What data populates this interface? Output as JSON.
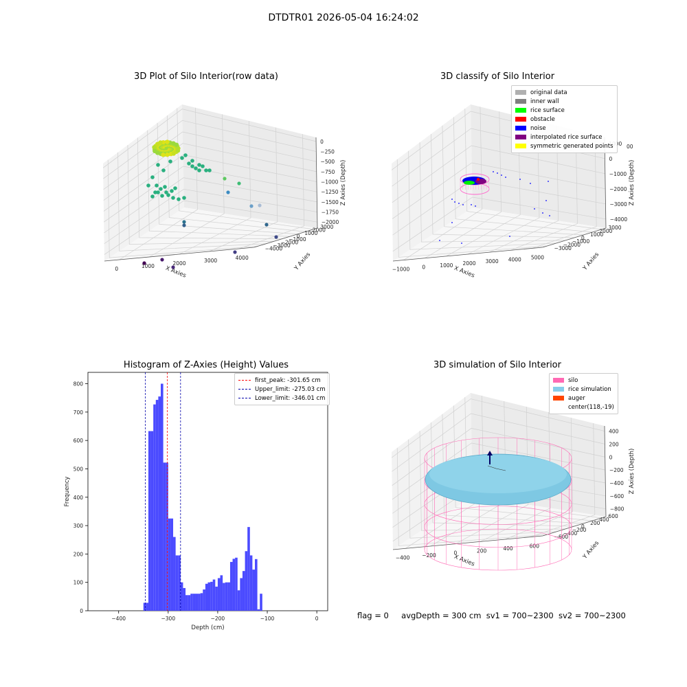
{
  "suptitle": "DTDTR01 2026-05-04 16:24:02",
  "panels": {
    "raw": {
      "title": "3D Plot of Silo Interior(row data)",
      "xlabel": "X Axies",
      "ylabel": "Y Axies",
      "zlabel": "Z Axies (Depth)",
      "xticks": [
        "0",
        "1000",
        "2000",
        "3000",
        "4000"
      ],
      "yticks": [
        "3000",
        "2000",
        "1000",
        "0",
        "−1000",
        "−2000",
        "−3000",
        "−4000"
      ],
      "zticks": [
        "0",
        "−250",
        "−500",
        "−750",
        "−1000",
        "−1250",
        "−1500",
        "−1750",
        "−2000"
      ]
    },
    "classify": {
      "title": "3D classify of Silo Interior",
      "xlabel": "X Axies",
      "ylabel": "Y Axies",
      "zlabel": "Z Axies (Depth)",
      "xticks": [
        "−1000",
        "0",
        "1000",
        "2000",
        "3000",
        "4000",
        "5000"
      ],
      "yticks": [
        "3000",
        "2000",
        "1000",
        "0",
        "−1000",
        "−2000",
        "−3000"
      ],
      "zticks": [
        "1000",
        "0",
        "−1000",
        "−2000",
        "−3000",
        "−4000"
      ],
      "ztop_partial": "00",
      "legend": [
        {
          "label": "original data",
          "color": "#b0b0b0"
        },
        {
          "label": "inner wall",
          "color": "#808080"
        },
        {
          "label": "rice surface",
          "color": "#00ff00"
        },
        {
          "label": "obstacle",
          "color": "#ff0000"
        },
        {
          "label": "noise",
          "color": "#0000ff"
        },
        {
          "label": "interpolated rice surface",
          "color": "#800080"
        },
        {
          "label": "symmetric generated points",
          "color": "#ffff00"
        }
      ]
    },
    "histogram": {
      "title": "Histogram of Z-Axies (Height) Values",
      "xlabel": "Depth (cm)",
      "ylabel": "Frequency",
      "legend": [
        {
          "label": "first_peak: -301.65 cm",
          "color": "#ff0000"
        },
        {
          "label": "Upper_limit: -275.03 cm",
          "color": "#0000aa"
        },
        {
          "label": "Lower_limit: -346.01 cm",
          "color": "#0000aa"
        }
      ]
    },
    "simulation": {
      "title": "3D simulation of Silo Interior",
      "xlabel": "X Axies",
      "ylabel": "Y Axies",
      "zlabel": "Z Axies (Depth)",
      "xticks": [
        "−400",
        "−200",
        "0",
        "200",
        "400",
        "600"
      ],
      "yticks": [
        "600",
        "400",
        "200",
        "0",
        "−200",
        "−400",
        "−600"
      ],
      "zticks": [
        "400",
        "200",
        "0",
        "−200",
        "−400",
        "−600",
        "−800"
      ],
      "legend": [
        {
          "label": "silo",
          "color": "#ff69b4"
        },
        {
          "label": "rice simulation",
          "color": "#87ceeb"
        },
        {
          "label": "auger",
          "color": "#ff4500"
        },
        {
          "label": "center(118,-19)",
          "color": ""
        }
      ]
    }
  },
  "status": {
    "flag": "flag = 0",
    "avg": "avgDepth = 300 cm",
    "sv1": "sv1 = 700~2300",
    "sv2": "sv2 = 700~2300"
  },
  "chart_data": [
    {
      "type": "scatter",
      "title": "3D Plot of Silo Interior(row data)",
      "xlabel": "X Axies",
      "ylabel": "Y Axies",
      "zlabel": "Z Axies (Depth)",
      "xlim": [
        -500,
        4300
      ],
      "ylim": [
        -4200,
        3500
      ],
      "zlim": [
        -2100,
        100
      ],
      "colormap": "viridis (by depth)"
    },
    {
      "type": "scatter",
      "title": "3D classify of Silo Interior",
      "xlabel": "X Axies",
      "ylabel": "Y Axies",
      "zlabel": "Z Axies (Depth)",
      "xlim": [
        -1500,
        5200
      ],
      "ylim": [
        -3500,
        3500
      ],
      "zlim": [
        -4200,
        1100
      ],
      "series": [
        "original data",
        "inner wall",
        "rice surface",
        "obstacle",
        "noise",
        "interpolated rice surface",
        "symmetric generated points"
      ]
    },
    {
      "type": "bar",
      "title": "Histogram of Z-Axies (Height) Values",
      "xlabel": "Depth (cm)",
      "ylabel": "Frequency",
      "xlim": [
        -462,
        22
      ],
      "ylim": [
        0,
        840
      ],
      "bar_color": "#4b4bff",
      "bin_width": 5,
      "x": [
        -347.5,
        -342.5,
        -337.5,
        -332.5,
        -327.5,
        -322.5,
        -317.5,
        -312.5,
        -307.5,
        -302.5,
        -297.5,
        -292.5,
        -287.5,
        -282.5,
        -277.5,
        -272.5,
        -267.5,
        -262.5,
        -257.5,
        -252.5,
        -247.5,
        -242.5,
        -237.5,
        -232.5,
        -227.5,
        -222.5,
        -217.5,
        -212.5,
        -207.5,
        -202.5,
        -197.5,
        -192.5,
        -187.5,
        -182.5,
        -177.5,
        -172.5,
        -167.5,
        -162.5,
        -157.5,
        -152.5,
        -147.5,
        -142.5,
        -137.5,
        -132.5,
        -127.5,
        -122.5,
        -117.5,
        -112.5,
        -107.5,
        -102.5,
        -97.5,
        -92.5,
        -87.5,
        -82.5,
        -77.5,
        -72.5,
        -67.5,
        -62.5,
        -57.5,
        -52.5,
        -47.5,
        -42.5,
        -37.5,
        -32.5,
        -27.5,
        -22.5,
        -17.5,
        -12.5,
        -7.5,
        -2.5
      ],
      "values": [
        28,
        28,
        633,
        633,
        727,
        743,
        755,
        800,
        522,
        522,
        325,
        325,
        260,
        195,
        195,
        100,
        80,
        55,
        55,
        60,
        60,
        60,
        60,
        62,
        75,
        95,
        100,
        102,
        110,
        85,
        115,
        125,
        98,
        100,
        100,
        172,
        183,
        187,
        72,
        115,
        140,
        210,
        295,
        195,
        145,
        182,
        5,
        60,
        0,
        0,
        0,
        0,
        0,
        0,
        0,
        0,
        0,
        0,
        0,
        0,
        0,
        0,
        0,
        0,
        0,
        0,
        0,
        0,
        0,
        0
      ],
      "vlines": [
        {
          "label": "first_peak: -301.65 cm",
          "x": -301.65,
          "color": "#ff0000"
        },
        {
          "label": "Upper_limit: -275.03 cm",
          "x": -275.03,
          "color": "#0000aa"
        },
        {
          "label": "Lower_limit: -346.01 cm",
          "x": -346.01,
          "color": "#0000aa"
        }
      ],
      "xticks": [
        -400,
        -300,
        -200,
        -100,
        0
      ],
      "yticks": [
        0,
        100,
        200,
        300,
        400,
        500,
        600,
        700,
        800
      ],
      "legend_position": "top-right"
    },
    {
      "type": "surface",
      "title": "3D simulation of Silo Interior",
      "xlabel": "X Axies",
      "ylabel": "Y Axies",
      "zlabel": "Z Axies (Depth)",
      "xlim": [
        -550,
        750
      ],
      "ylim": [
        -700,
        700
      ],
      "zlim": [
        -900,
        500
      ],
      "center": [
        118,
        -19
      ],
      "series": [
        "silo",
        "rice simulation",
        "auger",
        "center(118,-19)"
      ]
    }
  ]
}
